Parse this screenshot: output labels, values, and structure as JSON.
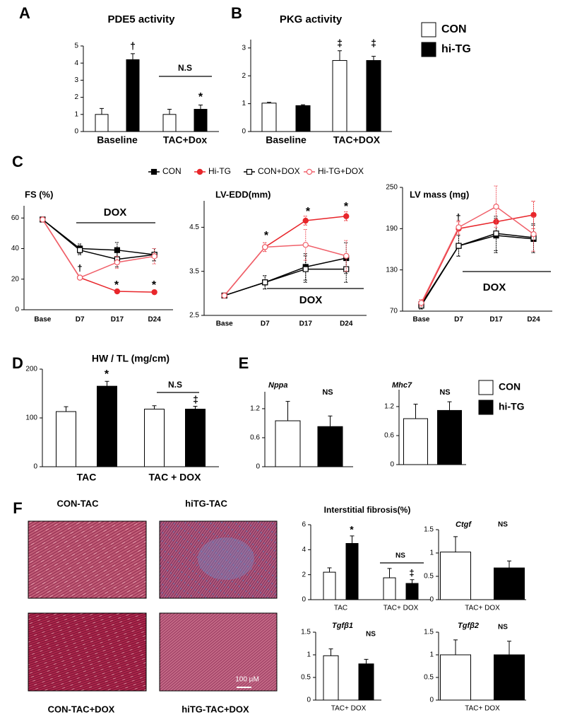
{
  "chart_data": [
    {
      "type": "bar",
      "panel": "A",
      "title": "PDE5 activity",
      "categories": [
        "Baseline",
        "TAC+Dox"
      ],
      "series": [
        {
          "color": "#ffffff",
          "values": [
            1.0,
            1.0
          ],
          "errors": [
            0.35,
            0.3
          ]
        },
        {
          "color": "#000000",
          "values": [
            4.2,
            1.3
          ],
          "errors": [
            0.35,
            0.25
          ]
        }
      ],
      "ylim": [
        0,
        5
      ],
      "yticks": [
        0,
        1,
        2,
        3,
        4,
        5
      ],
      "annotations": [
        "†",
        "*",
        "N.S"
      ]
    },
    {
      "type": "bar",
      "panel": "B",
      "title": "PKG activity",
      "categories": [
        "Baseline",
        "TAC+DOX"
      ],
      "series": [
        {
          "name": "CON",
          "color": "#ffffff",
          "values": [
            1.02,
            2.55
          ],
          "errors": [
            0.03,
            0.35
          ]
        },
        {
          "name": "hi-TG",
          "color": "#000000",
          "values": [
            0.93,
            2.55
          ],
          "errors": [
            0.03,
            0.15
          ]
        }
      ],
      "ylim": [
        0,
        3.3
      ],
      "yticks": [
        0,
        1,
        2,
        3
      ],
      "annotations": [
        "‡",
        "‡"
      ],
      "legend": true
    },
    {
      "type": "line",
      "panel": "C",
      "title": "FS (%)",
      "categories": [
        "Base",
        "D7",
        "D17",
        "D24"
      ],
      "series": [
        {
          "name": "CON",
          "color": "#000000",
          "marker": "square",
          "filled": true,
          "values": [
            59,
            40,
            39,
            36
          ],
          "errors": [
            1,
            3,
            5,
            4
          ]
        },
        {
          "name": "Hi-TG",
          "color": "#e8262b",
          "marker": "circle",
          "filled": true,
          "values": [
            59,
            21,
            12,
            11.5
          ],
          "errors": [
            1,
            1,
            1,
            1
          ]
        },
        {
          "name": "CON+DOX",
          "color": "#000000",
          "marker": "square",
          "filled": false,
          "values": [
            59,
            39,
            33,
            36
          ],
          "errors": [
            1,
            3,
            5,
            4
          ]
        },
        {
          "name": "Hi-TG+DOX",
          "color": "#f0606a",
          "marker": "circle",
          "filled": false,
          "values": [
            59,
            21,
            31,
            35
          ],
          "errors": [
            1,
            1,
            4,
            5
          ]
        }
      ],
      "ylim": [
        0,
        68
      ],
      "yticks": [
        0,
        20,
        40,
        60
      ],
      "annotations": [
        "DOX",
        "†",
        "*",
        "*"
      ],
      "legend": true
    },
    {
      "type": "line",
      "title": "LV-EDD(mm)",
      "categories": [
        "Base",
        "D7",
        "D17",
        "D24"
      ],
      "series": [
        {
          "color": "#000000",
          "marker": "square",
          "filled": true,
          "values": [
            2.95,
            3.25,
            3.6,
            3.8
          ],
          "errors": [
            0.05,
            0.15,
            0.3,
            0.35
          ]
        },
        {
          "color": "#e8262b",
          "marker": "circle",
          "filled": true,
          "values": [
            2.95,
            4.05,
            4.65,
            4.75
          ],
          "errors": [
            0.05,
            0.1,
            0.1,
            0.1
          ]
        },
        {
          "color": "#000000",
          "marker": "square",
          "filled": false,
          "values": [
            2.95,
            3.25,
            3.55,
            3.55
          ],
          "errors": [
            0.05,
            0.15,
            0.3,
            0.3
          ]
        },
        {
          "color": "#f0606a",
          "marker": "circle",
          "filled": false,
          "values": [
            2.95,
            4.05,
            4.1,
            3.85
          ],
          "errors": [
            0.05,
            0.1,
            0.35,
            0.35
          ]
        }
      ],
      "ylim": [
        2.5,
        5.1
      ],
      "yticks": [
        2.5,
        3.5,
        4.5
      ],
      "annotations": [
        "*",
        "*",
        "*",
        "DOX"
      ]
    },
    {
      "type": "line",
      "title": "LV mass (mg)",
      "categories": [
        "Base",
        "D7",
        "D17",
        "D24"
      ],
      "series": [
        {
          "color": "#000000",
          "marker": "square",
          "filled": true,
          "values": [
            80,
            165,
            180,
            175
          ],
          "errors": [
            5,
            15,
            25,
            20
          ]
        },
        {
          "color": "#e8262b",
          "marker": "circle",
          "filled": true,
          "values": [
            80,
            190,
            200,
            210
          ],
          "errors": [
            5,
            10,
            20,
            20
          ]
        },
        {
          "color": "#000000",
          "marker": "square",
          "filled": false,
          "values": [
            78,
            165,
            183,
            177
          ],
          "errors": [
            5,
            15,
            25,
            20
          ]
        },
        {
          "color": "#f0606a",
          "marker": "circle",
          "filled": false,
          "values": [
            82,
            192,
            222,
            182
          ],
          "errors": [
            5,
            10,
            30,
            25
          ]
        }
      ],
      "ylim": [
        70,
        250
      ],
      "yticks": [
        70,
        130,
        190,
        250
      ],
      "annotations": [
        "†",
        "DOX"
      ]
    },
    {
      "type": "bar",
      "panel": "D",
      "title": "HW / TL (mg/cm)",
      "categories": [
        "TAC",
        "TAC + DOX"
      ],
      "series": [
        {
          "color": "#ffffff",
          "values": [
            113,
            118
          ],
          "errors": [
            10,
            7
          ]
        },
        {
          "color": "#000000",
          "values": [
            165,
            118
          ],
          "errors": [
            10,
            6
          ]
        }
      ],
      "ylim": [
        0,
        200
      ],
      "yticks": [
        0,
        100,
        200
      ],
      "annotations": [
        "*",
        "N.S",
        "‡"
      ]
    },
    {
      "type": "bar",
      "panel": "E",
      "title": "Nppa",
      "title_italic": true,
      "series": [
        {
          "color": "#ffffff",
          "values": [
            0.95
          ],
          "errors": [
            0.4
          ]
        },
        {
          "color": "#000000",
          "values": [
            0.83
          ],
          "errors": [
            0.22
          ]
        }
      ],
      "ylim": [
        0,
        1.55
      ],
      "yticks": [
        0,
        0.6,
        1.2
      ],
      "annotations": [
        "NS"
      ]
    },
    {
      "type": "bar",
      "title": "Mhc7",
      "title_italic": true,
      "series": [
        {
          "name": "CON",
          "color": "#ffffff",
          "values": [
            0.95
          ],
          "errors": [
            0.3
          ]
        },
        {
          "name": "hi-TG",
          "color": "#000000",
          "values": [
            1.12
          ],
          "errors": [
            0.18
          ]
        }
      ],
      "ylim": [
        0,
        1.55
      ],
      "yticks": [
        0,
        0.6,
        1.2
      ],
      "annotations": [
        "NS"
      ],
      "legend": true
    },
    {
      "type": "bar",
      "panel": "F",
      "title": "Interstitial fibrosis(%)",
      "categories": [
        "TAC",
        "TAC+ DOX"
      ],
      "series": [
        {
          "color": "#ffffff",
          "values": [
            2.2,
            1.75
          ],
          "errors": [
            0.35,
            0.75
          ]
        },
        {
          "color": "#000000",
          "values": [
            4.5,
            1.3
          ],
          "errors": [
            0.6,
            0.3
          ]
        }
      ],
      "ylim": [
        0,
        6
      ],
      "yticks": [
        0,
        2,
        4,
        6
      ],
      "annotations": [
        "*",
        "NS",
        "‡"
      ]
    },
    {
      "type": "bar",
      "title": "Ctgf",
      "title_italic": true,
      "categories": [
        "TAC+ DOX"
      ],
      "series": [
        {
          "color": "#ffffff",
          "values": [
            1.02
          ],
          "errors": [
            0.33
          ]
        },
        {
          "color": "#000000",
          "values": [
            0.68
          ],
          "errors": [
            0.15
          ]
        }
      ],
      "ylim": [
        0,
        1.5
      ],
      "yticks": [
        0,
        0.5,
        1,
        1.5
      ],
      "annotations": [
        "NS"
      ]
    },
    {
      "type": "bar",
      "title": "Tgfβ1",
      "title_italic": true,
      "categories": [
        "TAC+ DOX"
      ],
      "series": [
        {
          "color": "#ffffff",
          "values": [
            0.98
          ],
          "errors": [
            0.15
          ]
        },
        {
          "color": "#000000",
          "values": [
            0.8
          ],
          "errors": [
            0.1
          ]
        }
      ],
      "ylim": [
        0,
        1.5
      ],
      "yticks": [
        0,
        0.5,
        1,
        1.5
      ],
      "annotations": [
        "NS"
      ]
    },
    {
      "type": "bar",
      "title": "Tgfβ2",
      "title_italic": true,
      "categories": [
        "TAC+ DOX"
      ],
      "series": [
        {
          "color": "#ffffff",
          "values": [
            1.0
          ],
          "errors": [
            0.33
          ]
        },
        {
          "color": "#000000",
          "values": [
            1.0
          ],
          "errors": [
            0.3
          ]
        }
      ],
      "ylim": [
        0,
        1.5
      ],
      "yticks": [
        0,
        0.5,
        1,
        1.5
      ],
      "annotations": [
        "NS"
      ]
    }
  ],
  "histology": {
    "captions": [
      "CON-TAC",
      "hiTG-TAC",
      "CON-TAC+DOX",
      "hiTG-TAC+DOX"
    ],
    "scale_bar": "100 µM"
  }
}
